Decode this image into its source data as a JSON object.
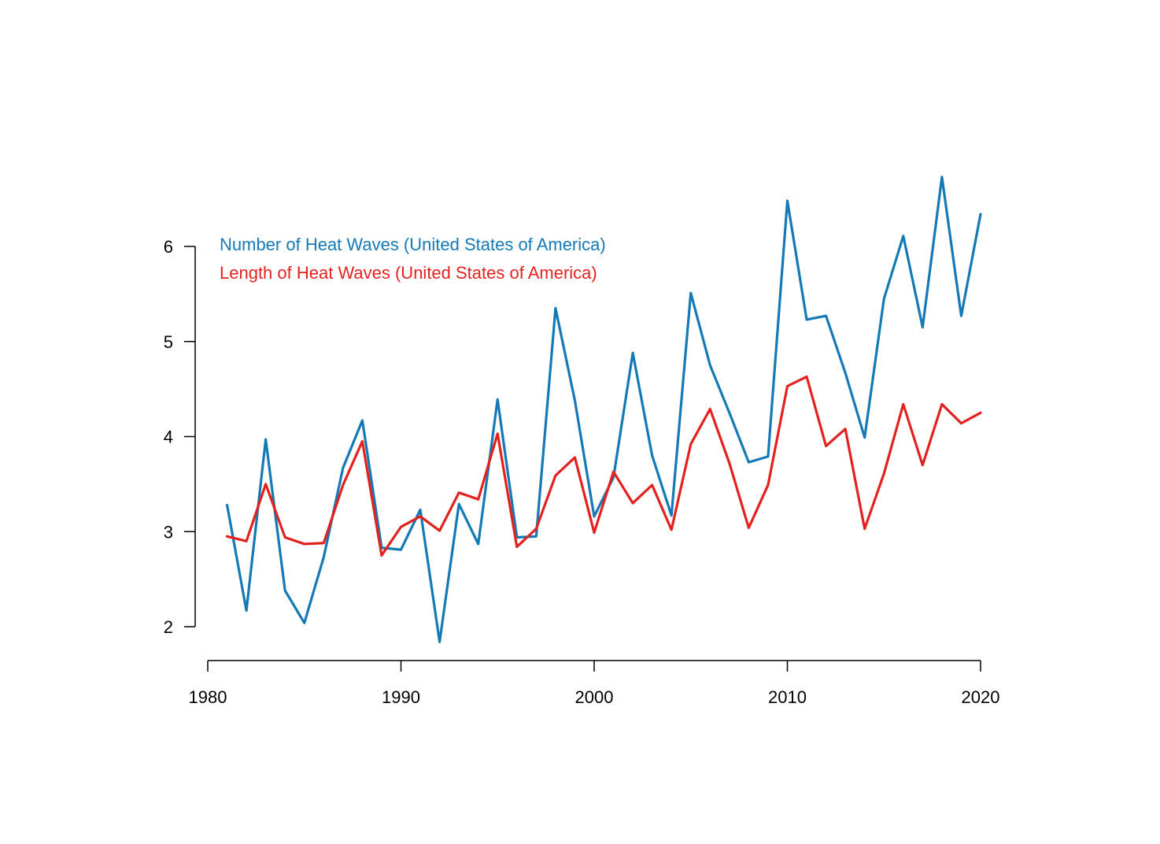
{
  "chart_data": {
    "type": "line",
    "title": "",
    "xlabel": "",
    "ylabel": "",
    "grid": false,
    "legend_placement": "top-left",
    "xlim": [
      1980,
      2020
    ],
    "ylim": [
      2,
      6
    ],
    "x_ticks": [
      1980,
      1990,
      2000,
      2010,
      2020
    ],
    "y_ticks": [
      2,
      3,
      4,
      5,
      6
    ],
    "x_tick_labels": [
      "1980",
      "1990",
      "2000",
      "2010",
      "2020"
    ],
    "y_tick_labels": [
      "2",
      "3",
      "4",
      "5",
      "6"
    ],
    "x": [
      1981,
      1982,
      1983,
      1984,
      1985,
      1986,
      1987,
      1988,
      1989,
      1990,
      1991,
      1992,
      1993,
      1994,
      1995,
      1996,
      1997,
      1998,
      1999,
      2000,
      2001,
      2002,
      2003,
      2004,
      2005,
      2006,
      2007,
      2008,
      2009,
      2010,
      2011,
      2012,
      2013,
      2014,
      2015,
      2016,
      2017,
      2018,
      2019,
      2020
    ],
    "series": [
      {
        "name": "Number of Heat Waves (United States of America)",
        "color": "#1479b4",
        "values": [
          3.28,
          2.17,
          3.97,
          2.38,
          2.04,
          2.73,
          3.67,
          4.17,
          2.83,
          2.81,
          3.23,
          1.84,
          3.29,
          2.87,
          4.39,
          2.94,
          2.95,
          5.35,
          4.38,
          3.16,
          3.57,
          4.88,
          3.8,
          3.17,
          5.51,
          4.75,
          4.25,
          3.73,
          3.79,
          6.48,
          5.23,
          5.27,
          4.67,
          3.99,
          5.45,
          6.11,
          5.15,
          6.73,
          5.27,
          6.34
        ]
      },
      {
        "name": "Length of Heat Waves (United States of America)",
        "color": "#e3211f",
        "values": [
          2.95,
          2.9,
          3.5,
          2.94,
          2.87,
          2.88,
          3.49,
          3.95,
          2.75,
          3.05,
          3.16,
          3.01,
          3.41,
          3.34,
          4.03,
          2.84,
          3.03,
          3.59,
          3.78,
          2.99,
          3.63,
          3.3,
          3.49,
          3.02,
          3.92,
          4.29,
          3.72,
          3.04,
          3.49,
          4.53,
          4.63,
          3.9,
          4.08,
          3.03,
          3.61,
          4.34,
          3.7,
          4.34,
          4.14,
          4.25
        ]
      }
    ]
  }
}
